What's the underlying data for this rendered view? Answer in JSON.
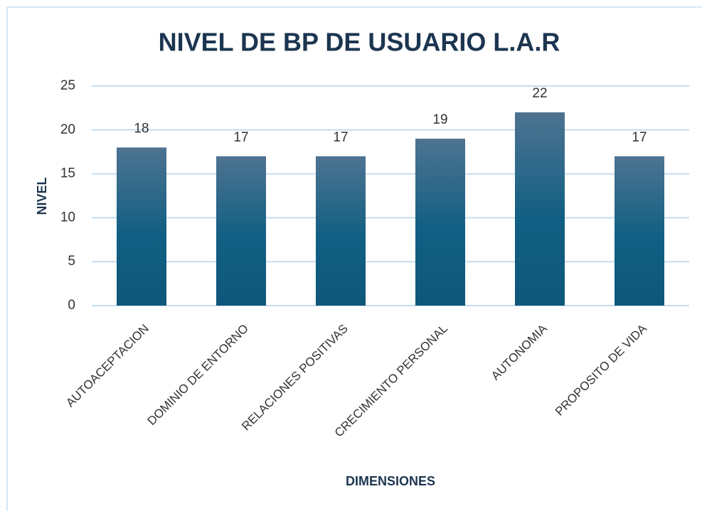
{
  "chart_data": {
    "type": "bar",
    "title": "NIVEL DE BP DE USUARIO L.A.R",
    "x_label": "DIMENSIONES",
    "y_label": "NIVEL",
    "categories": [
      "AUTOACEPTACION",
      "DOMINIO DE ENTORNO",
      "RELACIONES POSITIVAS",
      "CRECIMIENTO PERSONAL",
      "AUTONOMIA",
      "PROPOSITO DE VIDA"
    ],
    "values": [
      18,
      17,
      17,
      19,
      22,
      17
    ],
    "color": "#105e82",
    "ylim": [
      0,
      25
    ],
    "yticks": [
      0,
      5,
      10,
      15,
      20,
      25
    ],
    "grid": true
  }
}
